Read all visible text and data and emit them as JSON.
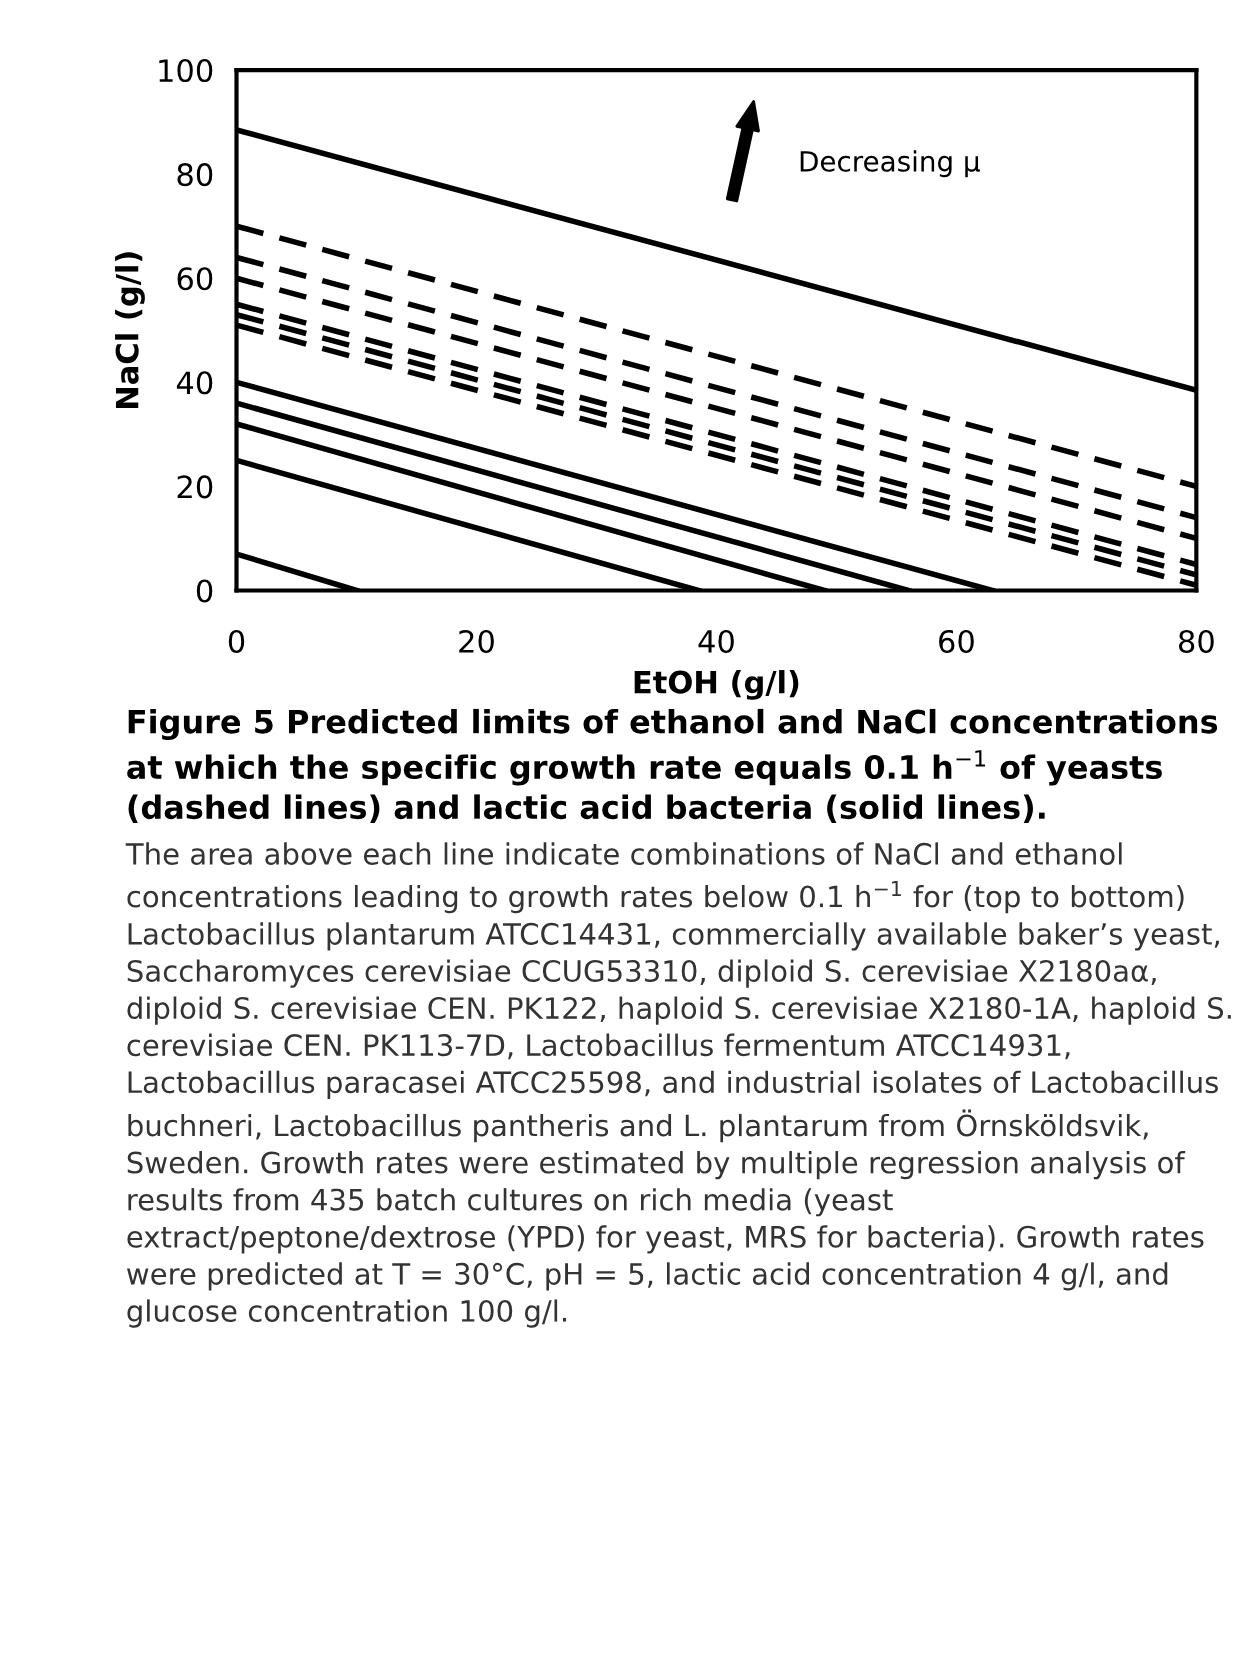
{
  "chart_data": {
    "type": "line",
    "xlabel": "EtOH (g/l)",
    "ylabel": "NaCl (g/l)",
    "xlim": [
      0,
      80
    ],
    "xticks": [
      0,
      20,
      40,
      60,
      80
    ],
    "ylim": [
      0,
      100
    ],
    "yticks": [
      0,
      20,
      40,
      60,
      80,
      100
    ],
    "grid": false,
    "marker": "none",
    "series": [
      {
        "color": "#000000",
        "line_style": "solid",
        "x": [
          0,
          80
        ],
        "values": [
          88.5,
          38.5
        ]
      },
      {
        "color": "#000000",
        "line_style": "dashed",
        "x": [
          0,
          80
        ],
        "values": [
          70,
          20
        ]
      },
      {
        "color": "#000000",
        "line_style": "dashed",
        "x": [
          0,
          80
        ],
        "values": [
          64,
          14
        ]
      },
      {
        "color": "#000000",
        "line_style": "dashed",
        "x": [
          0,
          80
        ],
        "values": [
          60,
          10
        ]
      },
      {
        "color": "#000000",
        "line_style": "dashed",
        "x": [
          0,
          80
        ],
        "values": [
          55,
          5
        ]
      },
      {
        "color": "#000000",
        "line_style": "dashed",
        "x": [
          0,
          80
        ],
        "values": [
          53,
          3
        ]
      },
      {
        "color": "#000000",
        "line_style": "dashed",
        "x": [
          0,
          80
        ],
        "values": [
          51,
          1
        ]
      },
      {
        "color": "#000000",
        "line_style": "solid",
        "x": [
          0,
          63
        ],
        "values": [
          40,
          0
        ]
      },
      {
        "color": "#000000",
        "line_style": "solid",
        "x": [
          0,
          56
        ],
        "values": [
          36,
          0
        ]
      },
      {
        "color": "#000000",
        "line_style": "solid",
        "x": [
          0,
          49
        ],
        "values": [
          32,
          0
        ]
      },
      {
        "color": "#000000",
        "line_style": "solid",
        "x": [
          0,
          38.5
        ],
        "values": [
          25,
          0
        ]
      },
      {
        "color": "#000000",
        "line_style": "solid",
        "x": [
          0,
          10
        ],
        "values": [
          7,
          0
        ]
      }
    ],
    "annotations": [
      "Decreasing μ",
      "Figure 5 Predicted limits of ethanol and NaCl concentrations at which the specific growth rate equals 0.1 h$^{−1}$ of yeasts (dashed lines) and lactic acid bacteria (solid lines).",
      "The area above each line indicate combinations of NaCl and ethanol concentrations leading to growth rates below 0.1 h$^{−1}$ for (top to bottom) Lactobacillus plantarum ATCC14431, commercially available baker’s yeast, Saccharomyces cerevisiae CCUG53310, diploid S. cerevisiae X2180aα, diploid S. cerevisiae CEN. PK122, haploid S. cerevisiae X2180-1A, haploid S. cerevisiae CEN. PK113-7D, Lactobacillus fermentum ATCC14931, Lactobacillus paracasei ATCC25598, and industrial isolates of Lactobacillus buchneri, Lactobacillus pantheris and L. plantarum from Örnsköldsvik, Sweden. Growth rates were estimated by multiple regression analysis of results from 435 batch cultures on rich media (yeast extract/peptone/dextrose (YPD) for yeast, MRS for bacteria). Growth rates were predicted at T = 30°C, pH = 5, lactic acid concentration 4 g/l, and glucose concentration 100 g/l."
    ]
  }
}
